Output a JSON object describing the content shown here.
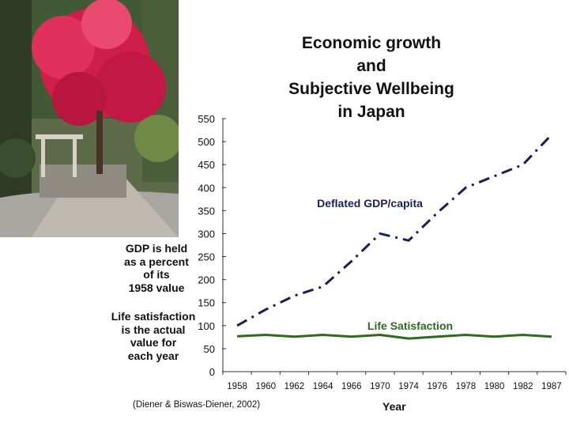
{
  "title_lines": [
    "Economic growth",
    "and",
    "Subjective Wellbeing",
    "in Japan"
  ],
  "annotations": {
    "gdp_note": [
      "GDP is held",
      "as a percent",
      "of its",
      "1958 value"
    ],
    "ls_note": [
      "Life satisfaction",
      "is the actual",
      "value for",
      "each year"
    ]
  },
  "source": "(Diener & Biswas-Diener, 2002)",
  "photo": {
    "description_icon": "shrine-autumn-photo"
  },
  "chart_data": {
    "type": "line",
    "title": "Economic growth and Subjective Wellbeing in Japan",
    "xlabel": "Year",
    "ylabel": "",
    "ylim": [
      0,
      550
    ],
    "yticks": [
      0,
      50,
      100,
      150,
      200,
      250,
      300,
      350,
      400,
      450,
      500,
      550
    ],
    "categories": [
      "1958",
      "1960",
      "1962",
      "1964",
      "1966",
      "1970",
      "1974",
      "1976",
      "1978",
      "1980",
      "1982",
      "1987"
    ],
    "series": [
      {
        "name": "Deflated GDP/capita",
        "color": "#1a1f5c",
        "style": "dash-dot",
        "values": [
          100,
          135,
          165,
          185,
          240,
          300,
          285,
          345,
          400,
          425,
          450,
          515
        ]
      },
      {
        "name": "Life Satisfaction",
        "color": "#2e6b1f",
        "style": "solid",
        "values": [
          77,
          80,
          76,
          80,
          76,
          80,
          72,
          76,
          80,
          76,
          80,
          76
        ]
      }
    ]
  }
}
